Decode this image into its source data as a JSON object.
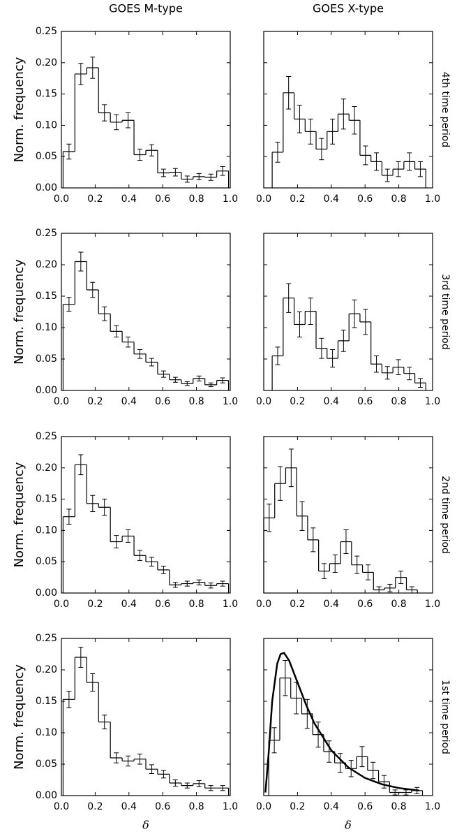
{
  "chart_data": [
    {
      "type": "histogram",
      "title": "GOES M-type",
      "ylabel": "Norm. frequency",
      "bins": [
        0.01,
        0.08,
        0.15,
        0.22,
        0.29,
        0.36,
        0.43,
        0.5,
        0.57,
        0.64,
        0.71,
        0.78,
        0.85,
        0.92,
        0.99
      ],
      "values": [
        0.058,
        0.182,
        0.192,
        0.12,
        0.105,
        0.108,
        0.053,
        0.06,
        0.024,
        0.025,
        0.014,
        0.018,
        0.017,
        0.027
      ],
      "errors": [
        0.012,
        0.017,
        0.017,
        0.013,
        0.012,
        0.012,
        0.009,
        0.009,
        0.006,
        0.006,
        0.005,
        0.005,
        0.005,
        0.007
      ],
      "xlim": [
        0,
        1
      ],
      "ylim": [
        0,
        0.25
      ],
      "xticks": [
        {
          "value": 0,
          "label": "0.0"
        },
        {
          "value": 0.2,
          "label": "0.2"
        },
        {
          "value": 0.4,
          "label": "0.4"
        },
        {
          "value": 0.6,
          "label": "0.6"
        },
        {
          "value": 0.8,
          "label": "0.8"
        },
        {
          "value": 1,
          "label": "1.0"
        }
      ],
      "yticks": [
        {
          "value": 0,
          "label": "0.00"
        },
        {
          "value": 0.05,
          "label": "0.05"
        },
        {
          "value": 0.1,
          "label": "0.10"
        },
        {
          "value": 0.15,
          "label": "0.15"
        },
        {
          "value": 0.2,
          "label": "0.20"
        },
        {
          "value": 0.25,
          "label": "0.25"
        }
      ]
    },
    {
      "type": "histogram",
      "title": "GOES X-type",
      "row_label": "4th time period",
      "bins": [
        0.05,
        0.115,
        0.18,
        0.245,
        0.31,
        0.375,
        0.44,
        0.505,
        0.57,
        0.635,
        0.7,
        0.765,
        0.83,
        0.895,
        0.96
      ],
      "values": [
        0.057,
        0.152,
        0.11,
        0.09,
        0.062,
        0.09,
        0.118,
        0.108,
        0.052,
        0.042,
        0.02,
        0.03,
        0.042,
        0.03
      ],
      "errors": [
        0.016,
        0.026,
        0.022,
        0.02,
        0.017,
        0.02,
        0.024,
        0.022,
        0.015,
        0.014,
        0.01,
        0.012,
        0.014,
        0.012
      ],
      "xlim": [
        0,
        1
      ],
      "ylim": [
        0,
        0.25
      ],
      "xticks": [
        {
          "value": 0,
          "label": "0.0"
        },
        {
          "value": 0.2,
          "label": "0.2"
        },
        {
          "value": 0.4,
          "label": "0.4"
        },
        {
          "value": 0.6,
          "label": "0.6"
        },
        {
          "value": 0.8,
          "label": "0.8"
        },
        {
          "value": 1,
          "label": "1.0"
        }
      ],
      "yticks": [
        0,
        0.05,
        0.1,
        0.15,
        0.2,
        0.25
      ]
    },
    {
      "type": "histogram",
      "ylabel": "Norm. frequency",
      "bins": [
        0.01,
        0.08,
        0.15,
        0.22,
        0.29,
        0.36,
        0.43,
        0.5,
        0.57,
        0.64,
        0.71,
        0.78,
        0.85,
        0.92,
        0.99
      ],
      "values": [
        0.137,
        0.205,
        0.16,
        0.122,
        0.094,
        0.077,
        0.058,
        0.045,
        0.026,
        0.017,
        0.011,
        0.019,
        0.009,
        0.016
      ],
      "errors": [
        0.011,
        0.015,
        0.012,
        0.011,
        0.009,
        0.008,
        0.007,
        0.006,
        0.005,
        0.004,
        0.003,
        0.004,
        0.003,
        0.004
      ],
      "xlim": [
        0,
        1
      ],
      "ylim": [
        0,
        0.25
      ],
      "xticks": [
        {
          "value": 0,
          "label": "0.0"
        },
        {
          "value": 0.2,
          "label": "0.2"
        },
        {
          "value": 0.4,
          "label": "0.4"
        },
        {
          "value": 0.6,
          "label": "0.6"
        },
        {
          "value": 0.8,
          "label": "0.8"
        },
        {
          "value": 1,
          "label": "1.0"
        }
      ],
      "yticks": [
        {
          "value": 0,
          "label": "0.00"
        },
        {
          "value": 0.05,
          "label": "0.05"
        },
        {
          "value": 0.1,
          "label": "0.10"
        },
        {
          "value": 0.15,
          "label": "0.15"
        },
        {
          "value": 0.2,
          "label": "0.20"
        },
        {
          "value": 0.25,
          "label": "0.25"
        }
      ]
    },
    {
      "type": "histogram",
      "row_label": "3rd time period",
      "bins": [
        0.05,
        0.115,
        0.18,
        0.245,
        0.31,
        0.375,
        0.44,
        0.505,
        0.57,
        0.635,
        0.7,
        0.765,
        0.83,
        0.895,
        0.96
      ],
      "values": [
        0.055,
        0.147,
        0.105,
        0.126,
        0.067,
        0.051,
        0.079,
        0.122,
        0.109,
        0.042,
        0.028,
        0.037,
        0.027,
        0.012
      ],
      "errors": [
        0.014,
        0.023,
        0.02,
        0.021,
        0.016,
        0.014,
        0.017,
        0.022,
        0.02,
        0.013,
        0.01,
        0.012,
        0.01,
        0.007
      ],
      "xlim": [
        0,
        1
      ],
      "ylim": [
        0,
        0.25
      ],
      "xticks": [
        {
          "value": 0,
          "label": "0.0"
        },
        {
          "value": 0.2,
          "label": "0.2"
        },
        {
          "value": 0.4,
          "label": "0.4"
        },
        {
          "value": 0.6,
          "label": "0.6"
        },
        {
          "value": 0.8,
          "label": "0.8"
        },
        {
          "value": 1,
          "label": "1.0"
        }
      ],
      "yticks": [
        0,
        0.05,
        0.1,
        0.15,
        0.2,
        0.25
      ]
    },
    {
      "type": "histogram",
      "ylabel": "Norm. frequency",
      "bins": [
        0.01,
        0.08,
        0.15,
        0.22,
        0.29,
        0.36,
        0.43,
        0.5,
        0.57,
        0.64,
        0.71,
        0.78,
        0.85,
        0.92,
        0.99
      ],
      "values": [
        0.122,
        0.205,
        0.143,
        0.137,
        0.082,
        0.091,
        0.06,
        0.05,
        0.037,
        0.013,
        0.015,
        0.017,
        0.012,
        0.015
      ],
      "errors": [
        0.012,
        0.016,
        0.013,
        0.013,
        0.01,
        0.01,
        0.008,
        0.007,
        0.006,
        0.004,
        0.004,
        0.004,
        0.004,
        0.004
      ],
      "xlim": [
        0,
        1
      ],
      "ylim": [
        0,
        0.25
      ],
      "xticks": [
        {
          "value": 0,
          "label": "0.0"
        },
        {
          "value": 0.2,
          "label": "0.2"
        },
        {
          "value": 0.4,
          "label": "0.4"
        },
        {
          "value": 0.6,
          "label": "0.6"
        },
        {
          "value": 0.8,
          "label": "0.8"
        },
        {
          "value": 1,
          "label": "1.0"
        }
      ],
      "yticks": [
        {
          "value": 0,
          "label": "0.00"
        },
        {
          "value": 0.05,
          "label": "0.05"
        },
        {
          "value": 0.1,
          "label": "0.10"
        },
        {
          "value": 0.15,
          "label": "0.15"
        },
        {
          "value": 0.2,
          "label": "0.20"
        },
        {
          "value": 0.25,
          "label": "0.25"
        }
      ]
    },
    {
      "type": "histogram",
      "row_label": "2nd time period",
      "bins": [
        0.0,
        0.065,
        0.13,
        0.195,
        0.26,
        0.325,
        0.39,
        0.455,
        0.52,
        0.585,
        0.65,
        0.715,
        0.78,
        0.845,
        0.91
      ],
      "values": [
        0.12,
        0.175,
        0.2,
        0.123,
        0.085,
        0.035,
        0.047,
        0.082,
        0.045,
        0.033,
        0.005,
        0.008,
        0.025,
        0.005
      ],
      "errors": [
        0.022,
        0.027,
        0.03,
        0.023,
        0.019,
        0.012,
        0.014,
        0.019,
        0.014,
        0.012,
        0.005,
        0.006,
        0.01,
        0.005
      ],
      "xlim": [
        0,
        1
      ],
      "ylim": [
        0,
        0.25
      ],
      "xticks": [
        {
          "value": 0,
          "label": "0.0"
        },
        {
          "value": 0.2,
          "label": "0.2"
        },
        {
          "value": 0.4,
          "label": "0.4"
        },
        {
          "value": 0.6,
          "label": "0.6"
        },
        {
          "value": 0.8,
          "label": "0.8"
        },
        {
          "value": 1,
          "label": "1.0"
        }
      ],
      "yticks": [
        0,
        0.05,
        0.1,
        0.15,
        0.2,
        0.25
      ]
    },
    {
      "type": "histogram",
      "ylabel": "Norm. frequency",
      "xlabel": "δ",
      "bins": [
        0.01,
        0.08,
        0.15,
        0.22,
        0.29,
        0.36,
        0.43,
        0.5,
        0.57,
        0.64,
        0.71,
        0.78,
        0.85,
        0.92,
        0.99
      ],
      "values": [
        0.153,
        0.22,
        0.18,
        0.117,
        0.06,
        0.055,
        0.058,
        0.042,
        0.034,
        0.02,
        0.016,
        0.019,
        0.012,
        0.012
      ],
      "errors": [
        0.013,
        0.016,
        0.014,
        0.011,
        0.008,
        0.008,
        0.008,
        0.007,
        0.006,
        0.005,
        0.004,
        0.005,
        0.004,
        0.004
      ],
      "xlim": [
        0,
        1
      ],
      "ylim": [
        0,
        0.25
      ],
      "xticks": [
        {
          "value": 0,
          "label": "0.0"
        },
        {
          "value": 0.2,
          "label": "0.2"
        },
        {
          "value": 0.4,
          "label": "0.4"
        },
        {
          "value": 0.6,
          "label": "0.6"
        },
        {
          "value": 0.8,
          "label": "0.8"
        },
        {
          "value": 1,
          "label": "1.0"
        }
      ],
      "yticks": [
        {
          "value": 0,
          "label": "0.00"
        },
        {
          "value": 0.05,
          "label": "0.05"
        },
        {
          "value": 0.1,
          "label": "0.10"
        },
        {
          "value": 0.15,
          "label": "0.15"
        },
        {
          "value": 0.2,
          "label": "0.20"
        },
        {
          "value": 0.25,
          "label": "0.25"
        }
      ]
    },
    {
      "type": "histogram",
      "row_label": "1st time period",
      "xlabel": "δ",
      "bins": [
        0.03,
        0.095,
        0.16,
        0.225,
        0.29,
        0.355,
        0.42,
        0.485,
        0.55,
        0.615,
        0.68,
        0.745,
        0.81,
        0.875,
        0.94
      ],
      "values": [
        0.088,
        0.187,
        0.155,
        0.13,
        0.097,
        0.07,
        0.052,
        0.043,
        0.062,
        0.04,
        0.022,
        0.005,
        0.005,
        0.008
      ],
      "errors": [
        0.02,
        0.028,
        0.025,
        0.023,
        0.02,
        0.017,
        0.015,
        0.013,
        0.016,
        0.013,
        0.01,
        0.004,
        0.004,
        0.005
      ],
      "fit": {
        "x": [
          0.01,
          0.03,
          0.05,
          0.08,
          0.1,
          0.12,
          0.15,
          0.2,
          0.25,
          0.3,
          0.4,
          0.5,
          0.6,
          0.7,
          0.8,
          0.92
        ],
        "y": [
          0.005,
          0.07,
          0.15,
          0.21,
          0.225,
          0.227,
          0.215,
          0.18,
          0.145,
          0.115,
          0.072,
          0.045,
          0.028,
          0.018,
          0.012,
          0.008
        ]
      },
      "xlim": [
        0,
        1
      ],
      "ylim": [
        0,
        0.25
      ],
      "xticks": [
        {
          "value": 0,
          "label": "0.0"
        },
        {
          "value": 0.2,
          "label": "0.2"
        },
        {
          "value": 0.4,
          "label": "0.4"
        },
        {
          "value": 0.6,
          "label": "0.6"
        },
        {
          "value": 0.8,
          "label": "0.8"
        },
        {
          "value": 1,
          "label": "1.0"
        }
      ],
      "yticks": [
        0,
        0.05,
        0.1,
        0.15,
        0.2,
        0.25
      ]
    }
  ]
}
